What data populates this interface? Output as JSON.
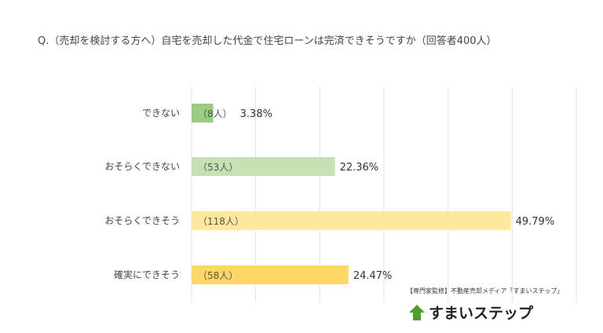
{
  "title": "Q.（売却を検討する方へ）自宅を売却した代金で住宅ローンは完済できそうですか（回答者400人）",
  "credit": "【専門家監修】不動産売却メディア「すまいステップ」",
  "logo": {
    "text": "すまいステップ",
    "icon": "house-up-arrow-icon",
    "color": "#4aa02c"
  },
  "chart_data": {
    "type": "bar",
    "orientation": "horizontal",
    "title": "Q.（売却を検討する方へ）自宅を売却した代金で住宅ローンは完済できそうですか（回答者400人）",
    "categories": [
      "できない",
      "おそらくできない",
      "おそらくできそう",
      "確実にできそう"
    ],
    "values": [
      3.38,
      22.36,
      49.79,
      24.47
    ],
    "value_labels": [
      "3.38%",
      "22.36%",
      "49.79%",
      "24.47%"
    ],
    "counts": [
      "（8人）",
      "（53人）",
      "（118人）",
      "（58人）"
    ],
    "colors": [
      "#9ccc84",
      "#c6e2b5",
      "#fde8a0",
      "#fdd766"
    ],
    "xlim": [
      0,
      60
    ],
    "grid": true,
    "tick_labels_shown": false
  }
}
